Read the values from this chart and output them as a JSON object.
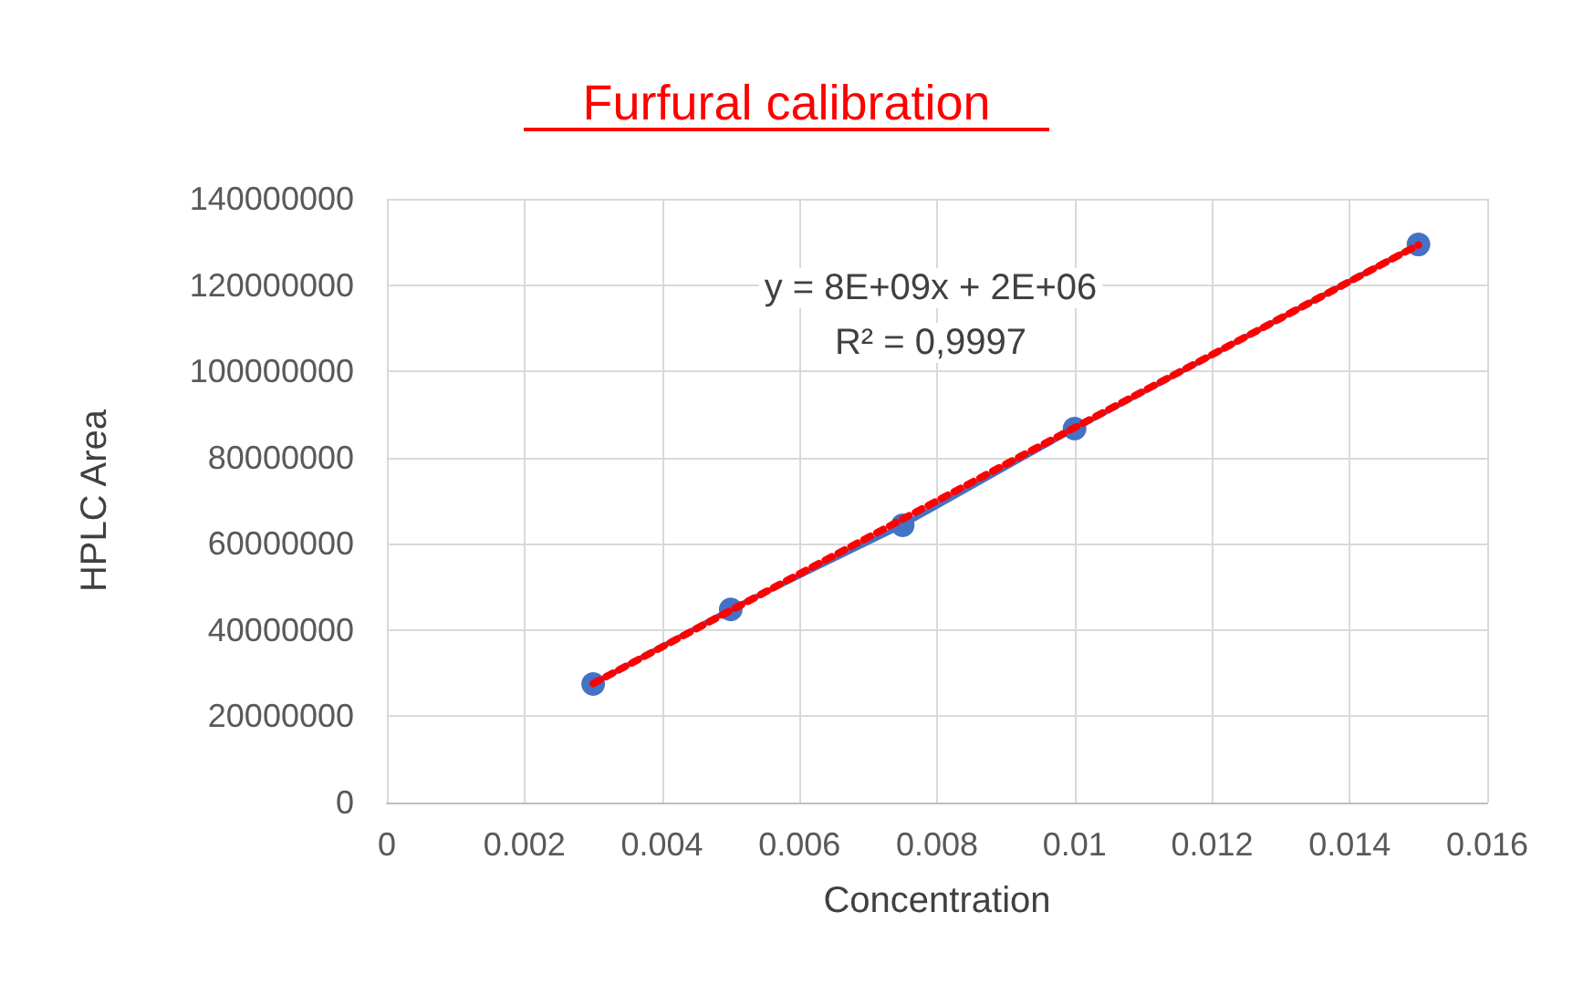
{
  "chart_data": {
    "type": "line",
    "title": "Furfural calibration",
    "xlabel": "Concentration",
    "ylabel": "HPLC Area",
    "annotations": [
      "y = 8E+09x + 2E+06",
      "R² = 0,9997"
    ],
    "xlim": [
      0,
      0.016
    ],
    "xticks": [
      0,
      0.002,
      0.004,
      0.006,
      0.008,
      0.01,
      0.012,
      0.014,
      0.016
    ],
    "ylim": [
      0,
      140000000
    ],
    "yticks": [
      0,
      20000000,
      40000000,
      60000000,
      80000000,
      100000000,
      120000000,
      140000000
    ],
    "grid": true,
    "series": [
      {
        "color": "#4472c4",
        "marker": "circle",
        "line_style": "solid",
        "x": [
          0.003,
          0.005,
          0.0075,
          0.01,
          0.015
        ],
        "values": [
          27500000,
          44800000,
          64300000,
          86700000,
          129400000
        ]
      },
      {
        "type": "line",
        "color": "#ff0000",
        "marker": "none",
        "line_style": "dotted",
        "x": [
          0.003,
          0.015
        ],
        "values": [
          27600000,
          129300000
        ]
      }
    ]
  }
}
